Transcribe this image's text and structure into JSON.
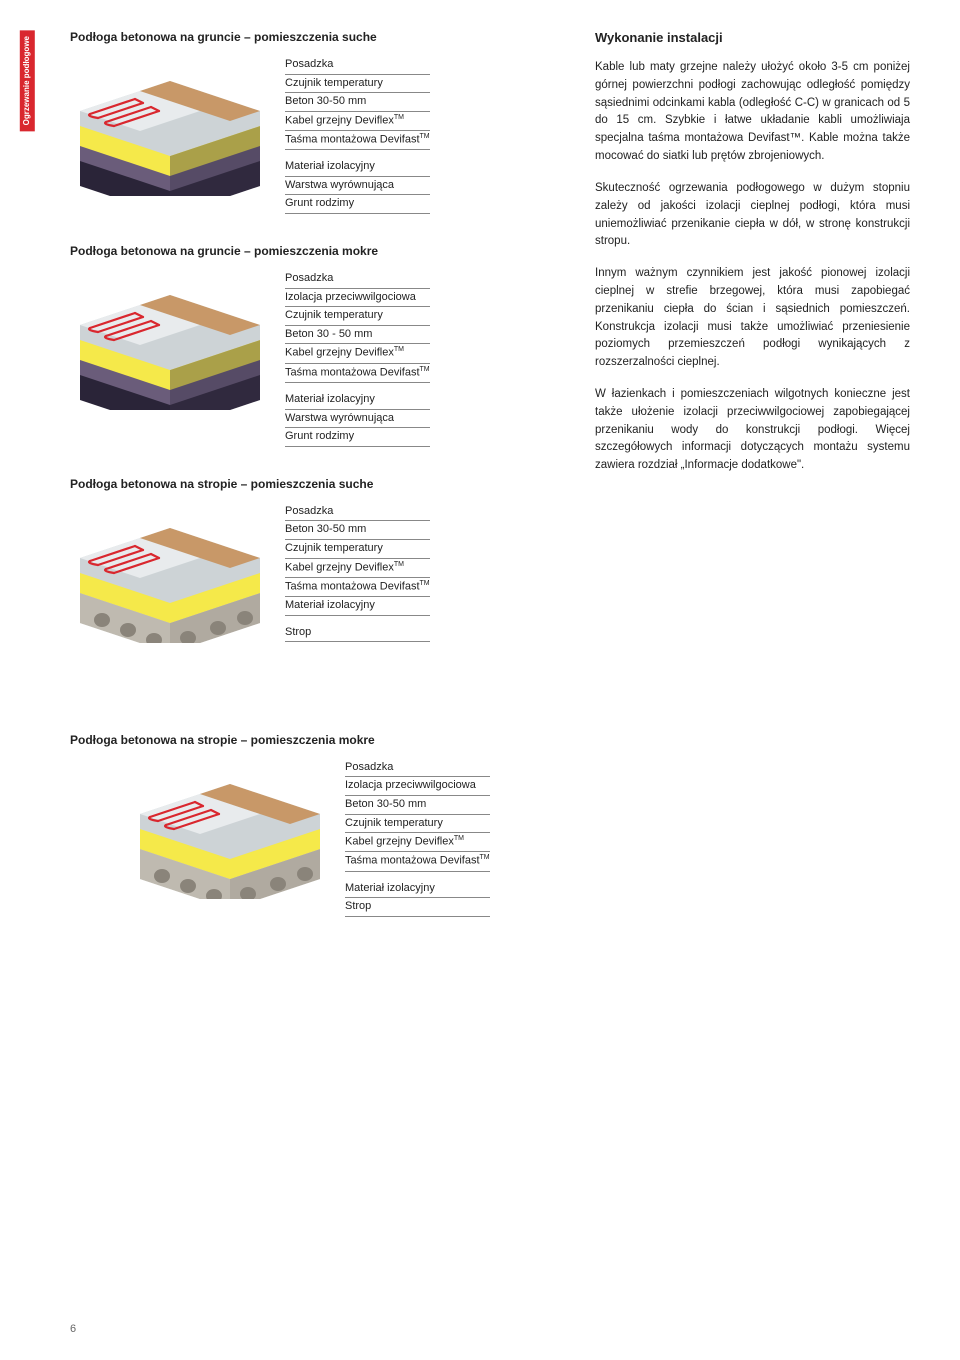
{
  "sideTab": {
    "line1": "Ogrzewanie",
    "line2": "podłogowe"
  },
  "pageNumber": "6",
  "sections": [
    {
      "title": "Podłoga betonowa na gruncie – pomieszczenia suche",
      "layers": [
        "Posadzka",
        "Czujnik temperatury",
        "Beton 30-50 mm",
        "Kabel grzejny Deviflex™",
        "Taśma montażowa Devifast™",
        "Materiał izolacyjny",
        "Warstwa wyrównująca",
        "Grunt rodzimy"
      ],
      "gap_after": 4
    },
    {
      "title": "Podłoga betonowa na gruncie – pomieszczenia mokre",
      "layers": [
        "Posadzka",
        "Izolacja przeciwwilgociowa",
        "Czujnik temperatury",
        "Beton 30 - 50 mm",
        "Kabel grzejny Deviflex™",
        "Taśma montażowa Devifast™",
        "Materiał izolacyjny",
        "Warstwa wyrównująca",
        "Grunt rodzimy"
      ],
      "gap_after": 5
    },
    {
      "title": "Podłoga betonowa na stropie – pomieszczenia suche",
      "layers": [
        "Posadzka",
        "Beton 30-50 mm",
        "Czujnik temperatury",
        "Kabel grzejny Deviflex™",
        "Taśma montażowa Devifast™",
        "Materiał izolacyjny",
        "Strop"
      ],
      "gap_after": 5
    },
    {
      "title": "Podłoga betonowa na stropie – pomieszczenia mokre",
      "layers": [
        "Posadzka",
        "Izolacja przeciwwilgociowa",
        "Beton 30-50 mm",
        "Czujnik temperatury",
        "Kabel grzejny Deviflex™",
        "Taśma montażowa Devifast™",
        "Materiał izolacyjny",
        "Strop"
      ],
      "gap_after": 5
    }
  ],
  "rightColumn": {
    "title": "Wykonanie instalacji",
    "paragraphs": [
      "Kable lub maty grzejne należy ułożyć około 3-5 cm poniżej górnej powierzchni podłogi zachowując odległość pomiędzy sąsiednimi odcinkami kabla (odległość C-C) w granicach od 5 do 15 cm. Szybkie i łatwe układanie kabli umożliwiaja specjalna taśma montażowa Devifast™. Kable można także mocować do siatki lub prętów zbrojeniowych.",
      "Skuteczność ogrzewania podłogowego w dużym stopniu zależy od jakości izolacji cieplnej podłogi, która musi uniemożliwiać przenikanie ciepła w dół, w stronę konstrukcji stropu.",
      "Innym ważnym czynnikiem jest jakość pionowej izolacji cieplnej w strefie brzegowej, która musi zapobiegać przenikaniu ciepła do ścian i sąsiednich pomieszczeń. Konstrukcja izolacji musi także umożliwiać przeniesienie poziomych przemieszczeń podłogi wynikających z rozszerzalności cieplnej.",
      "W łazienkach i pomieszczeniach wilgotnych konieczne jest także ułożenie izolacji przeciwwilgociowej zapobiegającej przenikaniu wody do konstrukcji podłogi. Więcej szczegółowych informacji dotyczących montażu systemu zawiera rozdział „Informacje dodatkowe\"."
    ]
  },
  "diagramColors": {
    "posadzka": "#c89868",
    "beton_light": "#cdd3d6",
    "beton_swirl": "#e8ebed",
    "izolacja": "#f5e94a",
    "warstwa": "#6a5c7a",
    "grunt": "#2a2438",
    "strop": "#d4d0c8",
    "cable": "#d9272e",
    "line": "#888888"
  }
}
